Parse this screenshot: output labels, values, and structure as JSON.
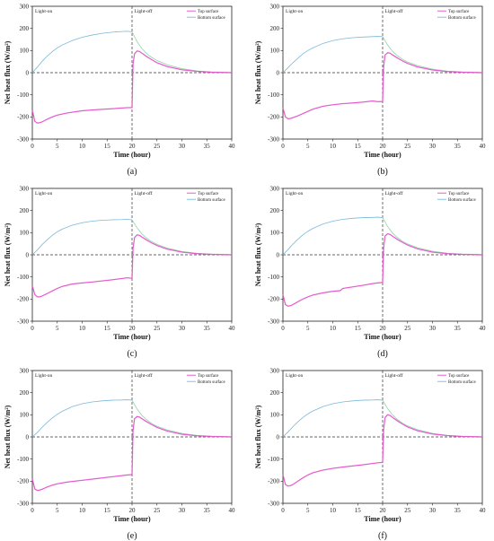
{
  "colors": {
    "top": "#e34fc9",
    "bottom": "#7ab9d9",
    "bottom_peak": "#8fd4a8"
  },
  "chart_data": [
    {
      "type": "line",
      "panel_label": "(a)",
      "xlabel": "Time (hour)",
      "ylabel": "Net heat flux (W/m²)",
      "xlim": [
        0,
        40
      ],
      "ylim": [
        -300,
        300
      ],
      "xticks": [
        0,
        5,
        10,
        15,
        20,
        25,
        30,
        35,
        40
      ],
      "yticks": [
        -300,
        -200,
        -100,
        0,
        100,
        200,
        300
      ],
      "annotations": [
        "Light-on",
        "Light-off"
      ],
      "divider_x": 20,
      "legend": {
        "position": "top-right",
        "entries": [
          "Top surface",
          "Bottom surface"
        ]
      },
      "series": [
        {
          "name": "Top surface",
          "x": [
            0,
            0.5,
            1,
            1.5,
            2,
            3,
            4,
            5,
            7,
            10,
            13,
            16,
            19,
            20,
            20.2,
            20.5,
            21,
            21.5,
            22,
            23,
            24,
            25,
            27,
            30,
            33,
            36,
            40
          ],
          "y": [
            -170,
            -220,
            -228,
            -226,
            -222,
            -210,
            -200,
            -192,
            -182,
            -172,
            -167,
            -163,
            -158,
            -158,
            40,
            85,
            98,
            96,
            88,
            72,
            58,
            45,
            28,
            13,
            6,
            2,
            0
          ]
        },
        {
          "name": "Bottom surface",
          "x": [
            0,
            1,
            2,
            3,
            4,
            5,
            6,
            8,
            10,
            12,
            14,
            16,
            18,
            19,
            20,
            21,
            22,
            23,
            24,
            25,
            27,
            30,
            33,
            36,
            40
          ],
          "y": [
            0,
            25,
            52,
            75,
            95,
            112,
            125,
            145,
            160,
            170,
            178,
            183,
            186,
            187,
            185,
            140,
            108,
            85,
            68,
            55,
            36,
            18,
            8,
            3,
            1
          ]
        }
      ]
    },
    {
      "type": "line",
      "panel_label": "(b)",
      "xlabel": "Time (hour)",
      "ylabel": "Net heat flux (W/m²)",
      "xlim": [
        0,
        40
      ],
      "ylim": [
        -300,
        300
      ],
      "xticks": [
        0,
        5,
        10,
        15,
        20,
        25,
        30,
        35,
        40
      ],
      "yticks": [
        -300,
        -200,
        -100,
        0,
        100,
        200,
        300
      ],
      "annotations": [
        "Light-on",
        "Light-off"
      ],
      "divider_x": 20,
      "legend": {
        "position": "top-right",
        "entries": [
          "Top surface",
          "Bottom surface"
        ]
      },
      "series": [
        {
          "name": "Top surface",
          "x": [
            0,
            0.5,
            1,
            1.5,
            2,
            3,
            4,
            5,
            6,
            8,
            10,
            12,
            14,
            16,
            18,
            19,
            20,
            20.2,
            20.5,
            21,
            21.5,
            22,
            23,
            24,
            25,
            27,
            30,
            33,
            36,
            40
          ],
          "y": [
            -160,
            -200,
            -208,
            -207,
            -203,
            -195,
            -185,
            -175,
            -165,
            -152,
            -145,
            -140,
            -137,
            -133,
            -128,
            -131,
            -130,
            30,
            80,
            90,
            88,
            80,
            66,
            53,
            42,
            26,
            12,
            5,
            2,
            0
          ]
        },
        {
          "name": "Bottom surface",
          "x": [
            0,
            1,
            2,
            3,
            4,
            5,
            6,
            8,
            10,
            12,
            14,
            16,
            18,
            19,
            20,
            21,
            22,
            23,
            24,
            25,
            27,
            30,
            33,
            36,
            40
          ],
          "y": [
            0,
            22,
            45,
            65,
            85,
            100,
            112,
            132,
            145,
            153,
            158,
            161,
            163,
            164,
            163,
            125,
            96,
            76,
            60,
            48,
            32,
            16,
            7,
            3,
            1
          ]
        }
      ]
    },
    {
      "type": "line",
      "panel_label": "(c)",
      "xlabel": "Time (hour)",
      "ylabel": "Net heat flux (W/m²)",
      "xlim": [
        0,
        40
      ],
      "ylim": [
        -300,
        300
      ],
      "xticks": [
        0,
        5,
        10,
        15,
        20,
        25,
        30,
        35,
        40
      ],
      "yticks": [
        -300,
        -200,
        -100,
        0,
        100,
        200,
        300
      ],
      "annotations": [
        "Light-on",
        "Light-off"
      ],
      "divider_x": 20,
      "legend": {
        "position": "top-right",
        "entries": [
          "Top surface",
          "Bottom surface"
        ]
      },
      "series": [
        {
          "name": "Top surface",
          "x": [
            0,
            0.5,
            1,
            1.5,
            2,
            3,
            4,
            5,
            6,
            8,
            10,
            12,
            14,
            16,
            18,
            19,
            20,
            20.2,
            20.5,
            21,
            21.5,
            22,
            23,
            24,
            25,
            27,
            30,
            33,
            36,
            40
          ],
          "y": [
            -140,
            -180,
            -190,
            -190,
            -186,
            -175,
            -163,
            -152,
            -143,
            -132,
            -127,
            -123,
            -118,
            -113,
            -107,
            -104,
            -106,
            30,
            78,
            90,
            88,
            80,
            66,
            53,
            42,
            26,
            12,
            5,
            2,
            0
          ]
        },
        {
          "name": "Bottom surface",
          "x": [
            0,
            1,
            2,
            3,
            4,
            5,
            6,
            8,
            10,
            12,
            14,
            16,
            18,
            19,
            20,
            21,
            22,
            23,
            24,
            25,
            27,
            30,
            33,
            36,
            40
          ],
          "y": [
            0,
            22,
            47,
            68,
            88,
            104,
            116,
            134,
            145,
            152,
            156,
            158,
            159,
            160,
            158,
            122,
            94,
            74,
            59,
            47,
            31,
            15,
            7,
            3,
            1
          ]
        }
      ]
    },
    {
      "type": "line",
      "panel_label": "(d)",
      "xlabel": "Time (hour)",
      "ylabel": "Net heat flux (W/m²)",
      "xlim": [
        0,
        40
      ],
      "ylim": [
        -300,
        300
      ],
      "xticks": [
        0,
        5,
        10,
        15,
        20,
        25,
        30,
        35,
        40
      ],
      "yticks": [
        -300,
        -200,
        -100,
        0,
        100,
        200,
        300
      ],
      "annotations": [
        "Light-on",
        "Light-off"
      ],
      "divider_x": 20,
      "legend": {
        "position": "top-right",
        "entries": [
          "Top surface",
          "Bottom surface"
        ]
      },
      "series": [
        {
          "name": "Top surface",
          "x": [
            0,
            0.5,
            1,
            1.5,
            2,
            3,
            4,
            5,
            6,
            8,
            10,
            11.5,
            12,
            14,
            16,
            18,
            19,
            20,
            20.2,
            20.5,
            21,
            21.5,
            22,
            23,
            24,
            25,
            27,
            30,
            33,
            36,
            40
          ],
          "y": [
            -180,
            -225,
            -232,
            -230,
            -225,
            -212,
            -200,
            -190,
            -182,
            -172,
            -165,
            -162,
            -152,
            -145,
            -138,
            -130,
            -127,
            -125,
            35,
            85,
            95,
            92,
            84,
            69,
            56,
            44,
            27,
            12,
            5,
            2,
            0
          ]
        },
        {
          "name": "Bottom surface",
          "x": [
            0,
            1,
            2,
            3,
            4,
            5,
            6,
            8,
            10,
            12,
            14,
            16,
            18,
            19,
            20,
            21,
            22,
            23,
            24,
            25,
            27,
            30,
            33,
            36,
            40
          ],
          "y": [
            0,
            23,
            48,
            70,
            90,
            106,
            119,
            139,
            152,
            160,
            165,
            168,
            169,
            170,
            168,
            128,
            98,
            77,
            61,
            49,
            32,
            16,
            7,
            3,
            1
          ]
        }
      ]
    },
    {
      "type": "line",
      "panel_label": "(e)",
      "xlabel": "Time (hour)",
      "ylabel": "Net heat flux (W/m²)",
      "xlim": [
        0,
        40
      ],
      "ylim": [
        -300,
        300
      ],
      "xticks": [
        0,
        5,
        10,
        15,
        20,
        25,
        30,
        35,
        40
      ],
      "yticks": [
        -300,
        -200,
        -100,
        0,
        100,
        200,
        300
      ],
      "annotations": [
        "Light-on",
        "Light-off"
      ],
      "divider_x": 20,
      "legend": {
        "position": "top-right",
        "entries": [
          "Top surface",
          "Bottom surface"
        ]
      },
      "series": [
        {
          "name": "Top surface",
          "x": [
            0,
            0.5,
            1,
            1.5,
            2,
            3,
            4,
            5,
            7,
            10,
            13,
            16,
            19,
            20,
            20.2,
            20.5,
            21,
            21.5,
            22,
            23,
            24,
            25,
            27,
            30,
            33,
            36,
            40
          ],
          "y": [
            -190,
            -235,
            -242,
            -240,
            -236,
            -226,
            -218,
            -212,
            -204,
            -196,
            -188,
            -180,
            -172,
            -170,
            30,
            82,
            92,
            90,
            82,
            68,
            55,
            43,
            27,
            12,
            5,
            2,
            0
          ]
        },
        {
          "name": "Bottom surface",
          "x": [
            0,
            1,
            2,
            3,
            4,
            5,
            6,
            8,
            10,
            12,
            14,
            16,
            18,
            19,
            20,
            21,
            22,
            23,
            24,
            25,
            27,
            30,
            33,
            36,
            40
          ],
          "y": [
            0,
            20,
            44,
            66,
            86,
            102,
            116,
            137,
            150,
            158,
            163,
            166,
            167,
            168,
            166,
            126,
            97,
            76,
            60,
            48,
            32,
            16,
            7,
            3,
            1
          ]
        }
      ]
    },
    {
      "type": "line",
      "panel_label": "(f)",
      "xlabel": "Time (hour)",
      "ylabel": "Net heat flux (W/m²)",
      "xlim": [
        0,
        40
      ],
      "ylim": [
        -300,
        300
      ],
      "xticks": [
        0,
        5,
        10,
        15,
        20,
        25,
        30,
        35,
        40
      ],
      "yticks": [
        -300,
        -200,
        -100,
        0,
        100,
        200,
        300
      ],
      "annotations": [
        "Light-on",
        "Light-off"
      ],
      "divider_x": 20,
      "legend": {
        "position": "top-right",
        "entries": [
          "Top surface",
          "Bottom surface"
        ]
      },
      "series": [
        {
          "name": "Top surface",
          "x": [
            0,
            0.5,
            1,
            1.5,
            2,
            3,
            4,
            5,
            6,
            8,
            10,
            12,
            14,
            16,
            18,
            19,
            20,
            20.2,
            20.5,
            21,
            21.5,
            22,
            23,
            24,
            25,
            27,
            30,
            33,
            36,
            40
          ],
          "y": [
            -170,
            -215,
            -222,
            -220,
            -215,
            -200,
            -185,
            -172,
            -162,
            -150,
            -142,
            -136,
            -131,
            -126,
            -120,
            -117,
            -115,
            35,
            88,
            100,
            97,
            88,
            72,
            58,
            45,
            28,
            13,
            6,
            2,
            0
          ]
        },
        {
          "name": "Bottom surface",
          "x": [
            0,
            1,
            2,
            3,
            4,
            5,
            6,
            8,
            10,
            12,
            14,
            16,
            18,
            19,
            20,
            21,
            22,
            23,
            24,
            25,
            27,
            30,
            33,
            36,
            40
          ],
          "y": [
            0,
            22,
            46,
            68,
            88,
            104,
            117,
            137,
            150,
            158,
            163,
            166,
            167,
            168,
            166,
            128,
            99,
            78,
            62,
            50,
            33,
            16,
            7,
            3,
            1
          ]
        }
      ]
    }
  ]
}
